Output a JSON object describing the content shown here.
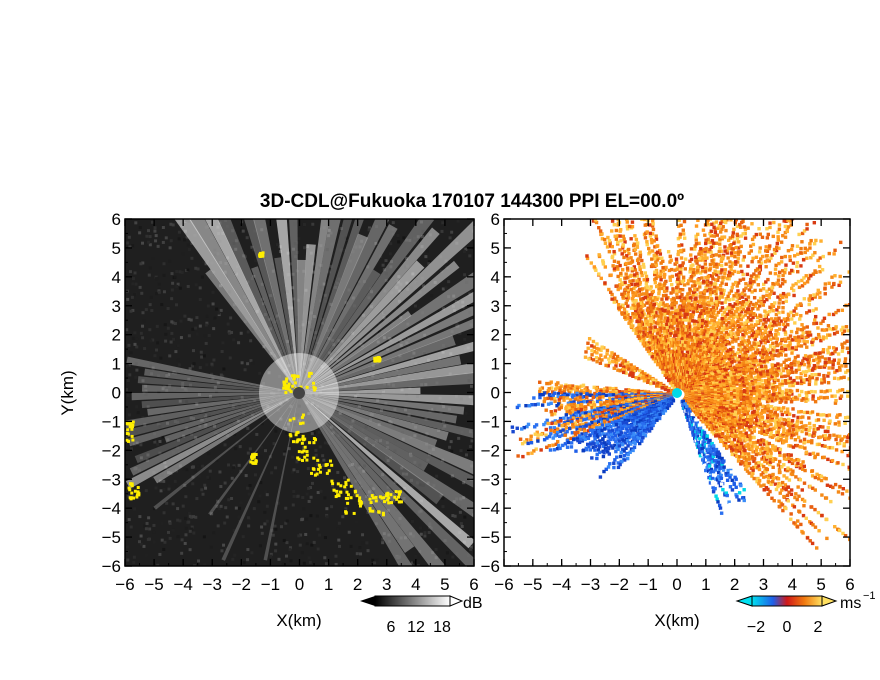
{
  "title": "3D-CDL@Fukuoka 170107 144300 PPI EL=00.0º",
  "colors": {
    "background": "#ffffff",
    "frame": "#000000",
    "reflectivity_background": "#1f1f1f",
    "echo_highlight": "#ffee00",
    "velocity_negative": "#1f5fe8",
    "velocity_positive": "#f07a10",
    "velocity_near_zero": "#00d8e8"
  },
  "chart_data": [
    {
      "type": "heatmap",
      "name": "reflectivity-ppi",
      "xlabel": "X(km)",
      "ylabel": "Y(km)",
      "xlim": [
        -6,
        6
      ],
      "ylim": [
        -6,
        6
      ],
      "xticks": [
        -6,
        -5,
        -4,
        -3,
        -2,
        -1,
        0,
        1,
        2,
        3,
        4,
        5,
        6
      ],
      "yticks": [
        -6,
        -5,
        -4,
        -3,
        -2,
        -1,
        0,
        1,
        2,
        3,
        4,
        5,
        6
      ],
      "colorbar": {
        "unit": "dB",
        "ticks": [
          6,
          12,
          18
        ],
        "colors": [
          "#000000",
          "#ffffff"
        ]
      }
    },
    {
      "type": "heatmap",
      "name": "doppler-velocity-ppi",
      "xlabel": "X(km)",
      "xlim": [
        -6,
        6
      ],
      "ylim": [
        -6,
        6
      ],
      "xticks": [
        -6,
        -5,
        -4,
        -3,
        -2,
        -1,
        0,
        1,
        2,
        3,
        4,
        5,
        6
      ],
      "yticks": [
        -6,
        -5,
        -4,
        -3,
        -2,
        -1,
        0,
        1,
        2,
        3,
        4,
        5,
        6
      ],
      "colorbar": {
        "unit": "ms",
        "unit_exponent": "−1",
        "ticks": [
          -2,
          0,
          2
        ],
        "colors": [
          "#00e0f0",
          "#1f5fe8",
          "#d01818",
          "#f07a10",
          "#ffe060"
        ]
      }
    }
  ]
}
